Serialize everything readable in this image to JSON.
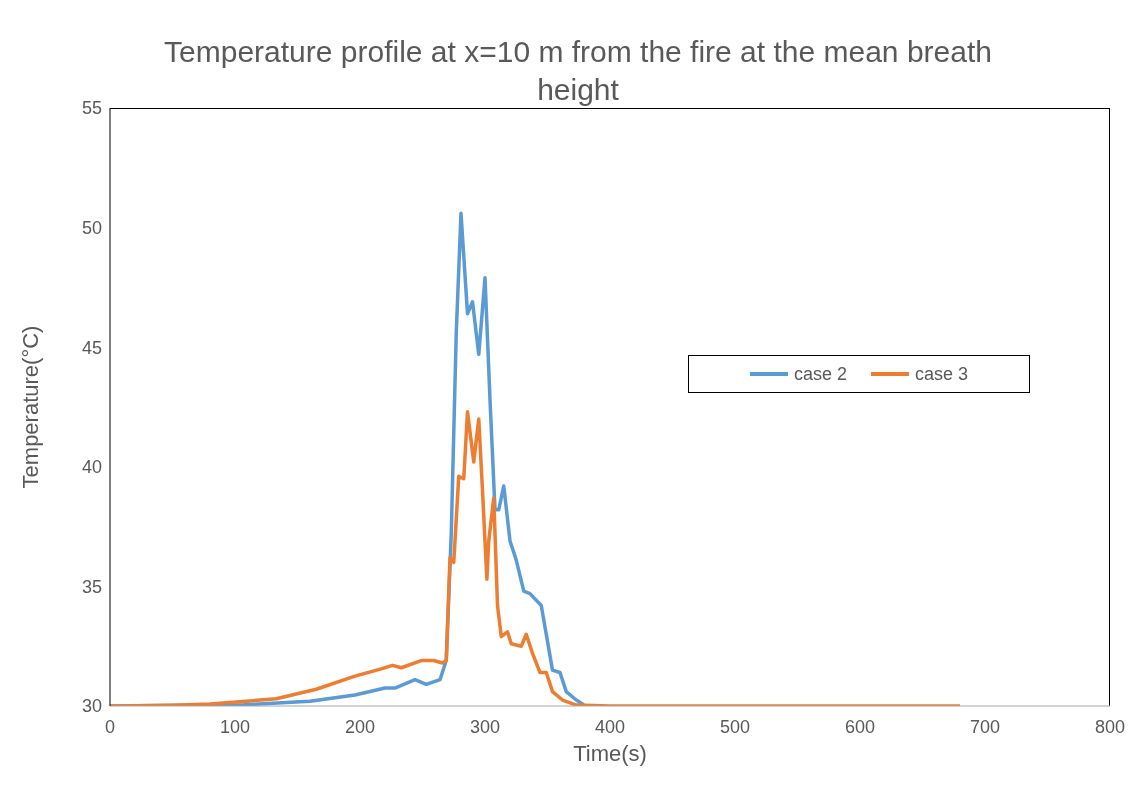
{
  "chart_data": {
    "type": "line",
    "title": "Temperature profile at x=10 m from the fire at the mean breath height",
    "xlabel": "Time(s)",
    "ylabel": "Temperature(°C)",
    "xlim": [
      0,
      800
    ],
    "xticks": [
      0,
      100,
      200,
      300,
      400,
      500,
      600,
      700,
      800
    ],
    "ylim": [
      30,
      55
    ],
    "yticks": [
      30,
      35,
      40,
      45,
      50,
      55
    ],
    "grid": false,
    "legend": "right",
    "marker": "none",
    "line_style": "solid",
    "series": [
      {
        "name": "case 2",
        "color": "#5b9bd5",
        "x": [
          0,
          107,
          160,
          196,
          220,
          228,
          244,
          253,
          264,
          269,
          273,
          277,
          280.8,
          286,
          290,
          295,
          300,
          304,
          308,
          311,
          315,
          320,
          325,
          331,
          336,
          345,
          354,
          360,
          365,
          373,
          379
        ],
        "values": [
          30,
          30.05,
          30.2,
          30.46,
          30.75,
          30.75,
          31.1,
          30.9,
          31.1,
          31.9,
          37.2,
          45.6,
          50.6,
          46.4,
          46.9,
          44.7,
          47.9,
          42.8,
          38.2,
          38.2,
          39.2,
          36.9,
          36.1,
          34.8,
          34.7,
          34.2,
          31.5,
          31.4,
          30.6,
          30.25,
          30.05
        ]
      },
      {
        "name": "case 3",
        "color": "#ed7d31",
        "x": [
          0,
          50,
          80,
          133,
          165,
          196,
          217,
          226,
          233,
          249,
          259,
          266,
          269,
          272,
          275,
          279,
          283,
          286,
          291,
          295,
          298,
          301.5,
          303,
          307,
          310,
          313,
          318,
          321,
          329,
          333,
          338,
          344,
          349,
          354,
          362,
          373,
          400,
          500,
          600,
          680
        ],
        "values": [
          30,
          30.03,
          30.08,
          30.3,
          30.7,
          31.25,
          31.55,
          31.7,
          31.6,
          31.9,
          31.9,
          31.8,
          31.9,
          36.2,
          36,
          39.6,
          39.5,
          42.3,
          40.2,
          42,
          39,
          35.3,
          36.9,
          38.7,
          34.2,
          32.9,
          33.1,
          32.6,
          32.5,
          33,
          32.2,
          31.4,
          31.4,
          30.6,
          30.25,
          30.04,
          30,
          30,
          30,
          30
        ]
      }
    ]
  }
}
